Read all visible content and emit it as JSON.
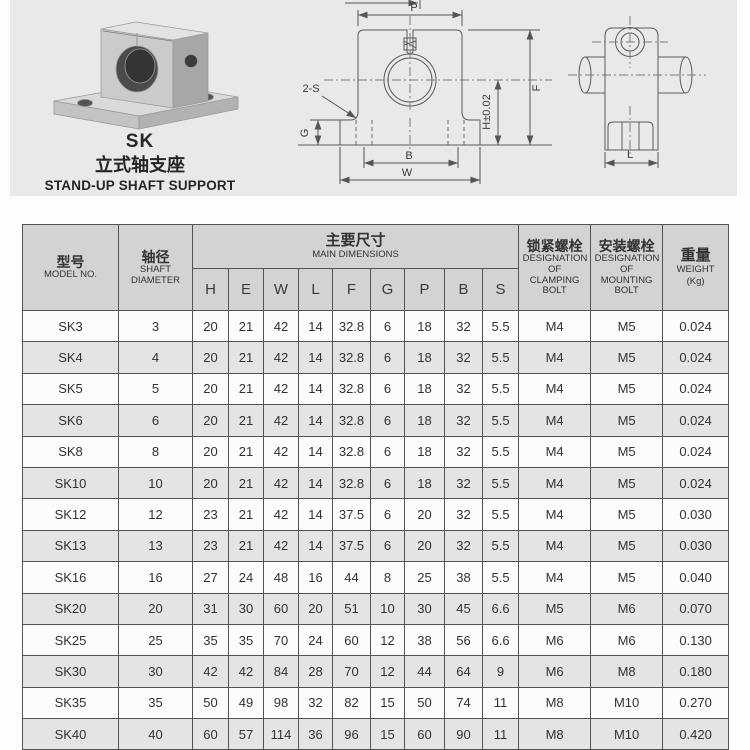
{
  "product": {
    "code": "SK",
    "name_cn": "立式轴支座",
    "name_en": "STAND-UP SHAFT SUPPORT"
  },
  "drawings": {
    "front_view": {
      "pillar_width": "P",
      "hole_note": "2-S",
      "base_height": "G",
      "hole_spacing": "B",
      "base_width": "W",
      "total_height": "F",
      "center_height": "H±0.02"
    },
    "side_view": {
      "depth": "L"
    }
  },
  "table": {
    "col_model": {
      "cn": "型号",
      "en": "MODEL NO."
    },
    "col_shaft": {
      "cn": "轴径",
      "en": "SHAFT DIAMETER"
    },
    "col_main": {
      "cn": "主要尺寸",
      "en": "MAIN DIMENSIONS"
    },
    "dims": [
      "H",
      "E",
      "W",
      "L",
      "F",
      "G",
      "P",
      "B",
      "S"
    ],
    "col_clamping": {
      "cn": "锁紧螺栓",
      "en": "DESIGNATION OF CLAMPING BOLT"
    },
    "col_mounting": {
      "cn": "安装螺栓",
      "en": "DESIGNATION OF MOUNTING BOLT"
    },
    "col_weight": {
      "cn": "重量",
      "en": "WEIGHT",
      "unit": "(Kg)"
    },
    "rows": [
      [
        "SK3",
        "3",
        "20",
        "21",
        "42",
        "14",
        "32.8",
        "6",
        "18",
        "32",
        "5.5",
        "M4",
        "M5",
        "0.024"
      ],
      [
        "SK4",
        "4",
        "20",
        "21",
        "42",
        "14",
        "32.8",
        "6",
        "18",
        "32",
        "5.5",
        "M4",
        "M5",
        "0.024"
      ],
      [
        "SK5",
        "5",
        "20",
        "21",
        "42",
        "14",
        "32.8",
        "6",
        "18",
        "32",
        "5.5",
        "M4",
        "M5",
        "0.024"
      ],
      [
        "SK6",
        "6",
        "20",
        "21",
        "42",
        "14",
        "32.8",
        "6",
        "18",
        "32",
        "5.5",
        "M4",
        "M5",
        "0.024"
      ],
      [
        "SK8",
        "8",
        "20",
        "21",
        "42",
        "14",
        "32.8",
        "6",
        "18",
        "32",
        "5.5",
        "M4",
        "M5",
        "0.024"
      ],
      [
        "SK10",
        "10",
        "20",
        "21",
        "42",
        "14",
        "32.8",
        "6",
        "18",
        "32",
        "5.5",
        "M4",
        "M5",
        "0.024"
      ],
      [
        "SK12",
        "12",
        "23",
        "21",
        "42",
        "14",
        "37.5",
        "6",
        "20",
        "32",
        "5.5",
        "M4",
        "M5",
        "0.030"
      ],
      [
        "SK13",
        "13",
        "23",
        "21",
        "42",
        "14",
        "37.5",
        "6",
        "20",
        "32",
        "5.5",
        "M4",
        "M5",
        "0.030"
      ],
      [
        "SK16",
        "16",
        "27",
        "24",
        "48",
        "16",
        "44",
        "8",
        "25",
        "38",
        "5.5",
        "M4",
        "M5",
        "0.040"
      ],
      [
        "SK20",
        "20",
        "31",
        "30",
        "60",
        "20",
        "51",
        "10",
        "30",
        "45",
        "6.6",
        "M5",
        "M6",
        "0.070"
      ],
      [
        "SK25",
        "25",
        "35",
        "35",
        "70",
        "24",
        "60",
        "12",
        "38",
        "56",
        "6.6",
        "M6",
        "M6",
        "0.130"
      ],
      [
        "SK30",
        "30",
        "42",
        "42",
        "84",
        "28",
        "70",
        "12",
        "44",
        "64",
        "9",
        "M6",
        "M8",
        "0.180"
      ],
      [
        "SK35",
        "35",
        "50",
        "49",
        "98",
        "32",
        "82",
        "15",
        "50",
        "74",
        "11",
        "M8",
        "M10",
        "0.270"
      ],
      [
        "SK40",
        "40",
        "60",
        "57",
        "114",
        "36",
        "96",
        "15",
        "60",
        "90",
        "11",
        "M8",
        "M10",
        "0.420"
      ]
    ]
  },
  "colors": {
    "band_bg": "#e9e9e7",
    "table_header_bg": "#d3d3d1",
    "row_alt_bg": "#e4e4e2",
    "border": "#535351"
  }
}
